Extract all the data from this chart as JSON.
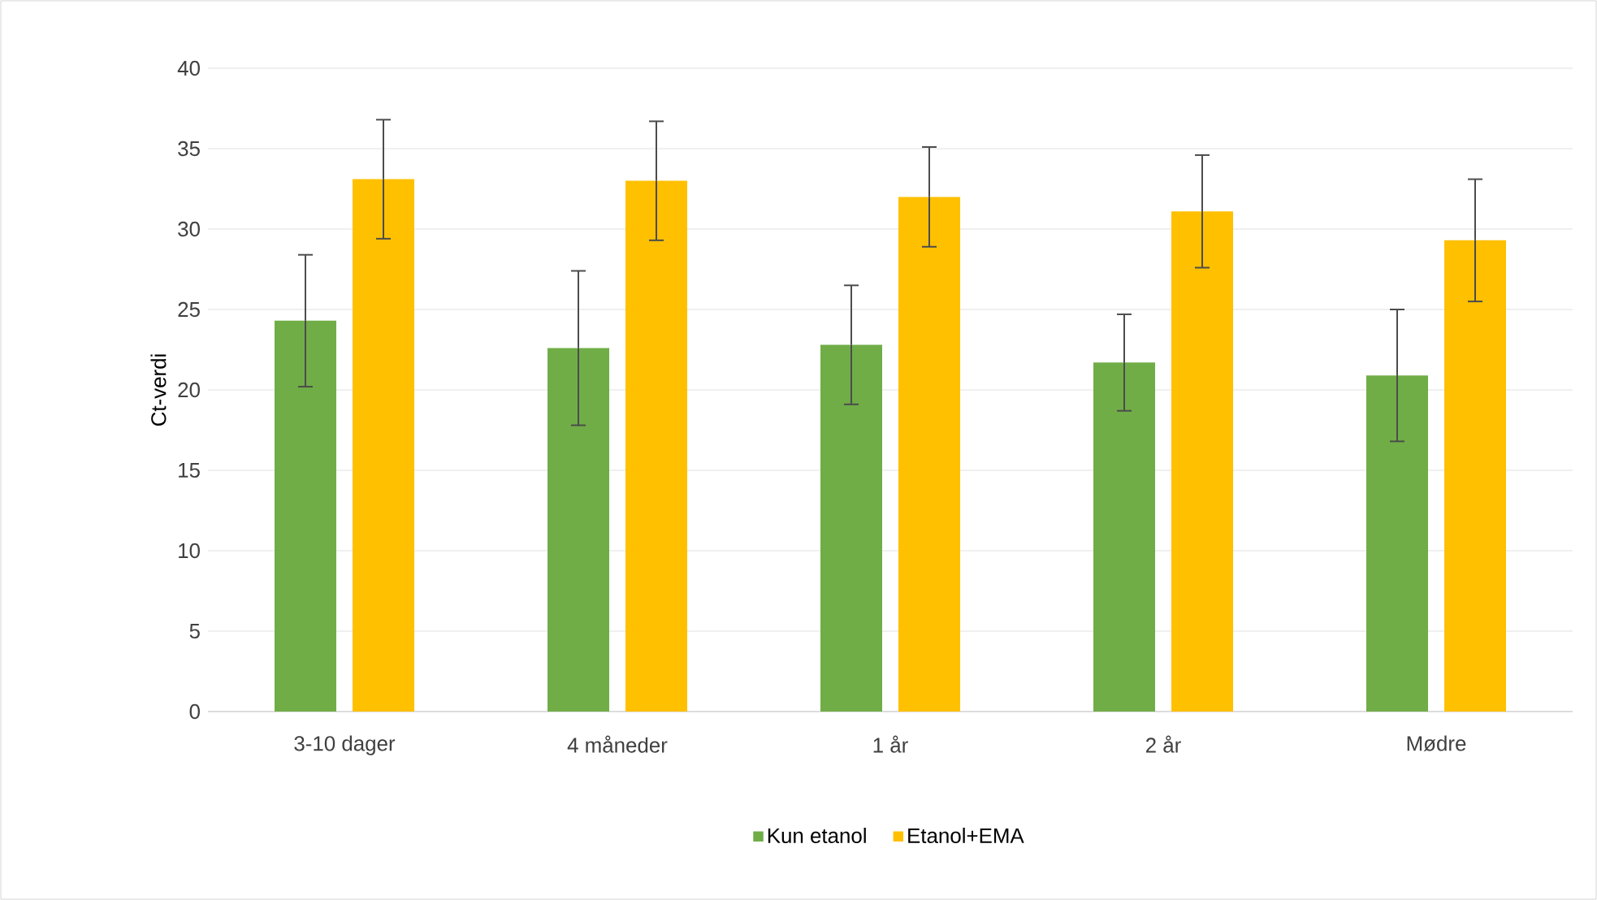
{
  "chart_data": {
    "type": "bar",
    "ylabel": "Ct-verdi",
    "categories": [
      "3-10 dager",
      "4 måneder",
      "1 år",
      "2 år",
      "Mødre"
    ],
    "series": [
      {
        "name": "Kun etanol",
        "color": "#70ad47",
        "values": [
          24.3,
          22.6,
          22.8,
          21.7,
          20.9
        ],
        "errors": [
          4.1,
          4.8,
          3.7,
          3.0,
          4.1
        ]
      },
      {
        "name": "Etanol+EMA",
        "color": "#ffc000",
        "values": [
          33.1,
          33.0,
          32.0,
          31.1,
          29.3
        ],
        "errors": [
          3.7,
          3.7,
          3.1,
          3.5,
          3.8
        ]
      }
    ],
    "ylim": [
      0,
      40
    ],
    "yticks": [
      0,
      5,
      10,
      15,
      20,
      25,
      30,
      35,
      40
    ],
    "grid": "y",
    "legend": "bottom"
  }
}
